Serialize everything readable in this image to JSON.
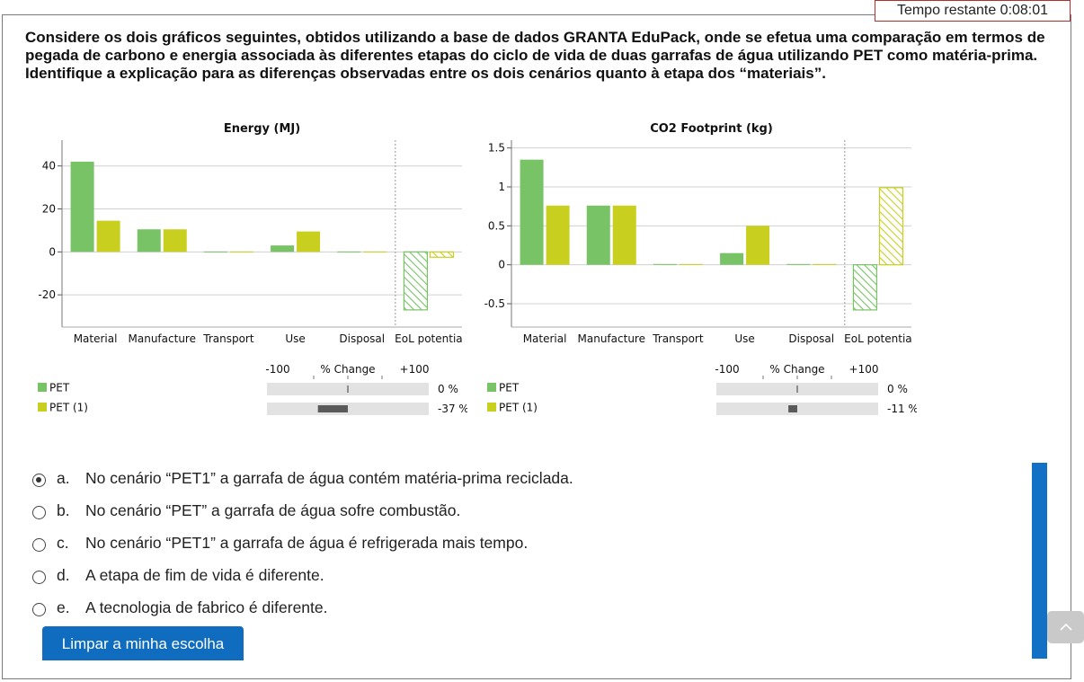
{
  "timer": {
    "text": "Tempo restante 0:08:01"
  },
  "question": {
    "text": "Considere os dois gráficos seguintes, obtidos utilizando a base de dados GRANTA EduPack, onde se efetua uma comparação em termos de pegada de carbono e energia associada às diferentes etapas do ciclo de vida de duas garrafas de água utilizando PET como matéria-prima. Identifique a explicação para as diferenças observadas entre os dois cenários quanto à etapa dos “materiais”."
  },
  "chart_data": [
    {
      "type": "bar",
      "title": "Energy (MJ)",
      "categories": [
        "Material",
        "Manufacture",
        "Transport",
        "Use",
        "Disposal",
        "EoL potentia"
      ],
      "series": [
        {
          "name": "PET",
          "values": [
            42,
            10.5,
            0.2,
            3,
            0.2,
            -27
          ],
          "color": "#78c366"
        },
        {
          "name": "PET (1)",
          "values": [
            14.5,
            10.5,
            0.2,
            9.5,
            0.2,
            -2.5
          ],
          "color": "#c8cf1f"
        }
      ],
      "hatched_category": "EoL potentia",
      "ylim": [
        -35,
        52
      ],
      "yticks": [
        40,
        20,
        0,
        -20
      ],
      "tick_labels": [
        "40",
        "20",
        "0",
        "-20"
      ],
      "legend": [
        "PET",
        "PET (1)"
      ],
      "change_axis": {
        "min_label": "-100",
        "title": "% Change",
        "max_label": "+100"
      },
      "change_values": [
        {
          "value": 0,
          "label": "0 %"
        },
        {
          "value": -37,
          "label": "-37 %"
        }
      ]
    },
    {
      "type": "bar",
      "title": "CO2 Footprint (kg)",
      "categories": [
        "Material",
        "Manufacture",
        "Transport",
        "Use",
        "Disposal",
        "EoL potentia"
      ],
      "series": [
        {
          "name": "PET",
          "values": [
            1.35,
            0.76,
            0.01,
            0.15,
            0.01,
            -0.58
          ],
          "color": "#78c366"
        },
        {
          "name": "PET (1)",
          "values": [
            0.76,
            0.76,
            0.01,
            0.5,
            0.01,
            0.99
          ],
          "color": "#c8cf1f"
        }
      ],
      "hatched_category": "EoL potentia",
      "ylim": [
        -0.8,
        1.6
      ],
      "yticks": [
        1.5,
        1,
        0.5,
        0,
        -0.5
      ],
      "tick_labels": [
        "1.5",
        "1",
        "0.5",
        "0",
        "-0.5"
      ],
      "legend": [
        "PET",
        "PET (1)"
      ],
      "change_axis": {
        "min_label": "-100",
        "title": "% Change",
        "max_label": "+100"
      },
      "change_values": [
        {
          "value": 0,
          "label": "0 %"
        },
        {
          "value": -11,
          "label": "-11 %"
        }
      ]
    }
  ],
  "options": [
    {
      "letter": "a.",
      "text": "No cenário “PET1” a garrafa de água contém matéria-prima reciclada.",
      "checked": true
    },
    {
      "letter": "b.",
      "text": "No cenário “PET” a garrafa de água sofre combustão.",
      "checked": false
    },
    {
      "letter": "c.",
      "text": "No cenário “PET1” a garrafa de água é refrigerada mais tempo.",
      "checked": false
    },
    {
      "letter": "d.",
      "text": "A etapa de fim de vida é diferente.",
      "checked": false
    },
    {
      "letter": "e.",
      "text": "A tecnologia de fabrico é diferente.",
      "checked": false
    }
  ],
  "clear_button": {
    "label": "Limpar a minha escolha"
  },
  "icons": {
    "scroll_top": "chevron-up-icon",
    "radio": "radio-icon"
  }
}
